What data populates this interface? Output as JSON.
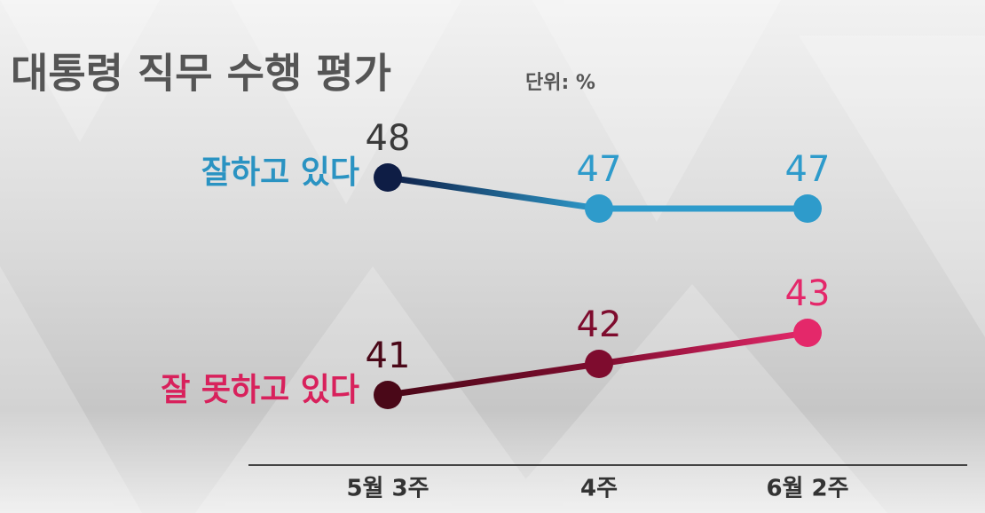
{
  "chart_data": {
    "type": "line",
    "title": "대통령 직무 수행 평가",
    "unit": "단위: %",
    "categories": [
      "5월 3주",
      "4주",
      "6월 2주"
    ],
    "series": [
      {
        "name": "잘하고 있다",
        "color": "#2a93c2",
        "point_colors": [
          "#0e1d45",
          "#2e9bcb",
          "#2e9bcb"
        ],
        "label_colors": [
          "#3a3a3a",
          "#2e9bcb",
          "#2e9bcb"
        ],
        "values": [
          48,
          47,
          47
        ]
      },
      {
        "name": "잘 못하고 있다",
        "color": "#d8215c",
        "point_colors": [
          "#4a0818",
          "#7e0c2e",
          "#e4286a"
        ],
        "label_colors": [
          "#4a0818",
          "#7e0c2e",
          "#e4286a"
        ],
        "values": [
          41,
          42,
          43
        ]
      }
    ]
  }
}
